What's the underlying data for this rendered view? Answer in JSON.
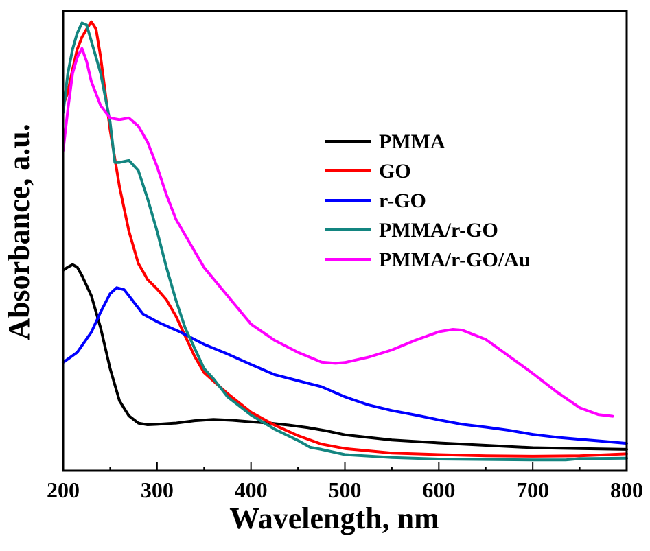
{
  "chart_data": {
    "type": "line",
    "xlabel": "Wavelength, nm",
    "ylabel": "Absorbance, a.u.",
    "xlim": [
      200,
      800
    ],
    "ylim": [
      0,
      1
    ],
    "xticks": [
      200,
      300,
      400,
      500,
      600,
      700,
      800
    ],
    "y_tick_labels_shown": false,
    "grid": false,
    "legend_position": "top-right",
    "series": [
      {
        "name": "PMMA",
        "color": "#000000",
        "points": [
          [
            200,
            0.433
          ],
          [
            205,
            0.441
          ],
          [
            210,
            0.447
          ],
          [
            215,
            0.441
          ],
          [
            220,
            0.42
          ],
          [
            230,
            0.37
          ],
          [
            240,
            0.29
          ],
          [
            250,
            0.19
          ],
          [
            260,
            0.11
          ],
          [
            270,
            0.073
          ],
          [
            280,
            0.055
          ],
          [
            290,
            0.051
          ],
          [
            300,
            0.052
          ],
          [
            320,
            0.055
          ],
          [
            340,
            0.061
          ],
          [
            360,
            0.064
          ],
          [
            380,
            0.062
          ],
          [
            400,
            0.058
          ],
          [
            420,
            0.055
          ],
          [
            440,
            0.05
          ],
          [
            460,
            0.044
          ],
          [
            480,
            0.036
          ],
          [
            500,
            0.026
          ],
          [
            550,
            0.013
          ],
          [
            600,
            0.006
          ],
          [
            650,
            0.0
          ],
          [
            700,
            -0.006
          ],
          [
            750,
            -0.008
          ],
          [
            800,
            -0.01
          ]
        ]
      },
      {
        "name": "GO",
        "color": "#ff0000",
        "points": [
          [
            200,
            0.842
          ],
          [
            205,
            0.873
          ],
          [
            210,
            0.93
          ],
          [
            215,
            0.98
          ],
          [
            220,
            1.01
          ],
          [
            225,
            1.03
          ],
          [
            230,
            1.048
          ],
          [
            235,
            1.03
          ],
          [
            240,
            0.96
          ],
          [
            250,
            0.78
          ],
          [
            260,
            0.64
          ],
          [
            270,
            0.53
          ],
          [
            280,
            0.45
          ],
          [
            290,
            0.41
          ],
          [
            300,
            0.387
          ],
          [
            310,
            0.36
          ],
          [
            320,
            0.32
          ],
          [
            330,
            0.27
          ],
          [
            340,
            0.22
          ],
          [
            350,
            0.18
          ],
          [
            375,
            0.128
          ],
          [
            400,
            0.082
          ],
          [
            425,
            0.05
          ],
          [
            450,
            0.024
          ],
          [
            475,
            0.003
          ],
          [
            500,
            -0.008
          ],
          [
            550,
            -0.019
          ],
          [
            600,
            -0.023
          ],
          [
            650,
            -0.026
          ],
          [
            700,
            -0.027
          ],
          [
            750,
            -0.026
          ],
          [
            800,
            -0.021
          ]
        ]
      },
      {
        "name": "r-GO",
        "color": "#0000ff",
        "points": [
          [
            200,
            0.205
          ],
          [
            215,
            0.23
          ],
          [
            230,
            0.28
          ],
          [
            240,
            0.33
          ],
          [
            250,
            0.375
          ],
          [
            257,
            0.39
          ],
          [
            265,
            0.385
          ],
          [
            275,
            0.355
          ],
          [
            285,
            0.325
          ],
          [
            300,
            0.306
          ],
          [
            325,
            0.28
          ],
          [
            350,
            0.25
          ],
          [
            375,
            0.226
          ],
          [
            400,
            0.2
          ],
          [
            425,
            0.175
          ],
          [
            450,
            0.16
          ],
          [
            475,
            0.145
          ],
          [
            500,
            0.12
          ],
          [
            525,
            0.1
          ],
          [
            550,
            0.086
          ],
          [
            575,
            0.075
          ],
          [
            600,
            0.063
          ],
          [
            625,
            0.052
          ],
          [
            650,
            0.045
          ],
          [
            675,
            0.037
          ],
          [
            700,
            0.027
          ],
          [
            725,
            0.02
          ],
          [
            750,
            0.015
          ],
          [
            775,
            0.01
          ],
          [
            800,
            0.005
          ]
        ]
      },
      {
        "name": "PMMA/r-GO",
        "color": "#138580",
        "points": [
          [
            200,
            0.823
          ],
          [
            205,
            0.92
          ],
          [
            210,
            0.98
          ],
          [
            215,
            1.02
          ],
          [
            220,
            1.045
          ],
          [
            225,
            1.04
          ],
          [
            230,
            1.0
          ],
          [
            240,
            0.92
          ],
          [
            250,
            0.8
          ],
          [
            255,
            0.7
          ],
          [
            260,
            0.7
          ],
          [
            270,
            0.705
          ],
          [
            280,
            0.68
          ],
          [
            290,
            0.61
          ],
          [
            300,
            0.53
          ],
          [
            310,
            0.44
          ],
          [
            320,
            0.36
          ],
          [
            330,
            0.29
          ],
          [
            340,
            0.24
          ],
          [
            350,
            0.19
          ],
          [
            360,
            0.165
          ],
          [
            375,
            0.12
          ],
          [
            400,
            0.075
          ],
          [
            425,
            0.04
          ],
          [
            450,
            0.012
          ],
          [
            463,
            -0.005
          ],
          [
            475,
            -0.01
          ],
          [
            500,
            -0.023
          ],
          [
            550,
            -0.03
          ],
          [
            600,
            -0.034
          ],
          [
            650,
            -0.035
          ],
          [
            700,
            -0.036
          ],
          [
            735,
            -0.036
          ],
          [
            750,
            -0.033
          ],
          [
            800,
            -0.032
          ]
        ]
      },
      {
        "name": "PMMA/r-GO/Au",
        "color": "#ff00ff",
        "points": [
          [
            200,
            0.729
          ],
          [
            205,
            0.83
          ],
          [
            210,
            0.92
          ],
          [
            215,
            0.96
          ],
          [
            220,
            0.982
          ],
          [
            225,
            0.95
          ],
          [
            230,
            0.9
          ],
          [
            240,
            0.84
          ],
          [
            250,
            0.81
          ],
          [
            260,
            0.806
          ],
          [
            270,
            0.81
          ],
          [
            280,
            0.79
          ],
          [
            290,
            0.75
          ],
          [
            300,
            0.69
          ],
          [
            310,
            0.62
          ],
          [
            320,
            0.56
          ],
          [
            330,
            0.52
          ],
          [
            340,
            0.48
          ],
          [
            350,
            0.44
          ],
          [
            375,
            0.37
          ],
          [
            400,
            0.3
          ],
          [
            425,
            0.26
          ],
          [
            450,
            0.23
          ],
          [
            475,
            0.206
          ],
          [
            490,
            0.203
          ],
          [
            500,
            0.205
          ],
          [
            525,
            0.218
          ],
          [
            550,
            0.236
          ],
          [
            575,
            0.26
          ],
          [
            600,
            0.281
          ],
          [
            615,
            0.287
          ],
          [
            625,
            0.285
          ],
          [
            650,
            0.262
          ],
          [
            675,
            0.22
          ],
          [
            700,
            0.178
          ],
          [
            725,
            0.133
          ],
          [
            750,
            0.093
          ],
          [
            770,
            0.076
          ],
          [
            785,
            0.072
          ]
        ]
      }
    ]
  }
}
